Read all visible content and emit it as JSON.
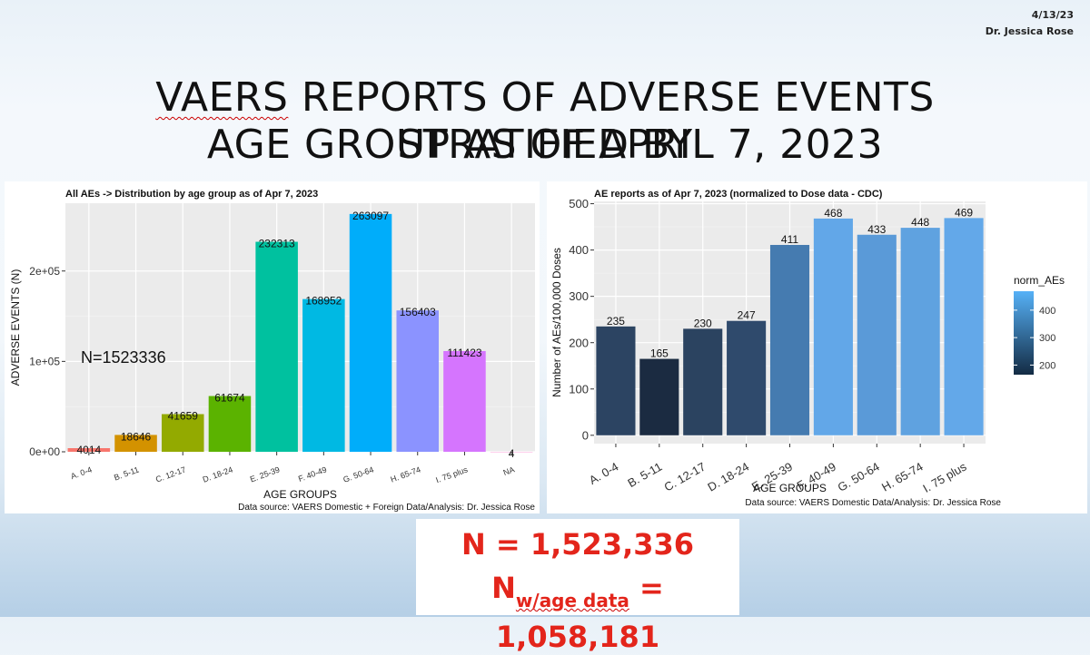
{
  "slide": {
    "date": "4/13/23",
    "author": "Dr. Jessica Rose",
    "title_line1_prefix": "VAERS",
    "title_line1_rest": " REPORTS OF ADVERSE EVENTS STRATIFIED BY",
    "title_line2": "AGE GROUP AS OF APRIL 7, 2023"
  },
  "summary": {
    "n_line": "N = 1,523,336",
    "nw_letter": "N",
    "nw_subscript": "w/age data",
    "nw_value": " = 1,058,181"
  },
  "colors": {
    "summary_text": "#e3251b",
    "panel_bg": "#ebebeb",
    "grid": "#ffffff"
  },
  "chart_data": [
    {
      "type": "bar",
      "title": "All AEs -> Distribution by age group as of Apr 7, 2023",
      "xlabel": "AGE GROUPS",
      "ylabel": "ADVERSE EVENTS (N)",
      "caption": "Data source: VAERS Domestic + Foreign Data/Analysis: Dr. Jessica Rose",
      "annotation": "N=1523336",
      "ylim": [
        0,
        275000
      ],
      "yticks": [
        0,
        100000,
        200000
      ],
      "ytick_labels": [
        "0e+00",
        "1e+05",
        "2e+05"
      ],
      "grid": true,
      "categories": [
        "A. 0-4",
        "B. 5-11",
        "C. 12-17",
        "D. 18-24",
        "E. 25-39",
        "F. 40-49",
        "G. 50-64",
        "H. 65-74",
        "I. 75 plus",
        "NA"
      ],
      "values": [
        4014,
        18646,
        41659,
        61674,
        232313,
        168952,
        263097,
        156403,
        111423,
        4
      ],
      "data_labels": [
        "4014",
        "18646",
        "41659",
        "61674",
        "232313",
        "168952",
        "263097",
        "156403",
        "111423",
        "4"
      ],
      "colors": [
        "#f8766d",
        "#d39200",
        "#93aa00",
        "#5bb300",
        "#00c19f",
        "#00b9e3",
        "#00adfa",
        "#8b93ff",
        "#d575fe",
        "#ff61c3"
      ]
    },
    {
      "type": "bar",
      "title": "AE reports as of Apr 7, 2023 (normalized to Dose data - CDC)",
      "xlabel": "AGE GROUPS",
      "ylabel": "Number of AEs/100,000 Doses",
      "caption": "Data source: VAERS Domestic Data/Analysis: Dr. Jessica Rose",
      "ylim": [
        -18,
        505
      ],
      "yticks": [
        0,
        100,
        200,
        300,
        400,
        500
      ],
      "grid": true,
      "categories": [
        "A. 0-4",
        "B. 5-11",
        "C. 12-17",
        "D. 18-24",
        "E. 25-39",
        "F. 40-49",
        "G. 50-64",
        "H. 65-74",
        "I. 75 plus"
      ],
      "values": [
        235,
        165,
        230,
        247,
        411,
        468,
        433,
        448,
        469
      ],
      "data_labels": [
        "235",
        "165",
        "230",
        "247",
        "411",
        "468",
        "433",
        "448",
        "469"
      ],
      "colors": [
        "#2c4462",
        "#1b2b41",
        "#2b4360",
        "#2f4a6c",
        "#457bb0",
        "#62a7e8",
        "#5a9ad8",
        "#5fa2e0",
        "#63a8e9"
      ],
      "legend": {
        "title": "norm_AEs",
        "labels": [
          "400",
          "300",
          "200"
        ],
        "values": [
          400,
          300,
          200
        ],
        "range": [
          165,
          469
        ],
        "color_low": "#132b43",
        "color_high": "#56b1f7",
        "position": "right"
      }
    }
  ]
}
